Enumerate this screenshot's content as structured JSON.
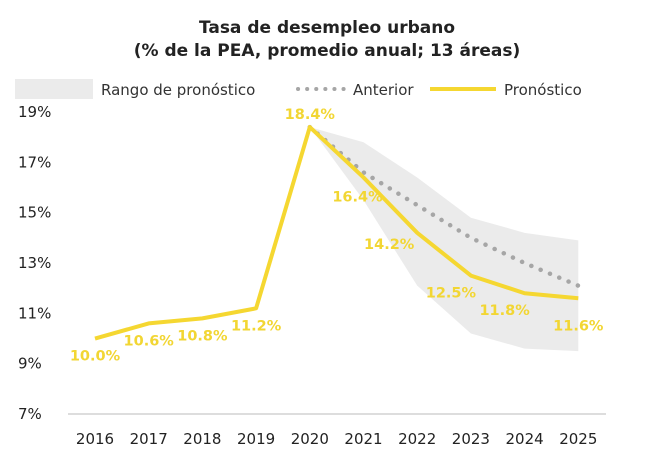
{
  "chart_data": {
    "type": "line",
    "title": "Tasa de desempleo urbano",
    "subtitle": "(% de la PEA, promedio anual; 13 áreas)",
    "x": [
      2016,
      2017,
      2018,
      2019,
      2020,
      2021,
      2022,
      2023,
      2024,
      2025
    ],
    "ylim": [
      7,
      19
    ],
    "yticks": [
      "19%",
      "17%",
      "15%",
      "13%",
      "11%",
      "9%",
      "7%"
    ],
    "ytick_values": [
      19,
      17,
      15,
      13,
      11,
      9,
      7
    ],
    "legend_placement": "top",
    "series": [
      {
        "name": "Rango de pronóstico",
        "type": "area",
        "color": "#ebebeb",
        "x": [
          2020,
          2021,
          2022,
          2023,
          2024,
          2025
        ],
        "upper": [
          18.4,
          17.8,
          16.4,
          14.8,
          14.2,
          13.9
        ],
        "lower": [
          18.4,
          15.5,
          12.1,
          10.2,
          9.6,
          9.5
        ]
      },
      {
        "name": "Anterior",
        "type": "dotted",
        "color": "#a6a6a6",
        "x": [
          2020,
          2021,
          2022,
          2023,
          2024,
          2025
        ],
        "values": [
          18.4,
          16.6,
          15.3,
          14.0,
          13.0,
          12.1
        ]
      },
      {
        "name": "Pronóstico",
        "type": "line",
        "color": "#f5d731",
        "values": [
          10.0,
          10.6,
          10.8,
          11.2,
          18.4,
          16.4,
          14.2,
          12.5,
          11.8,
          11.6
        ],
        "labels": [
          "10.0%",
          "10.6%",
          "10.8%",
          "11.2%",
          "18.4%",
          "16.4%",
          "14.2%",
          "12.5%",
          "11.8%",
          "11.6%"
        ]
      }
    ],
    "grid": false
  }
}
